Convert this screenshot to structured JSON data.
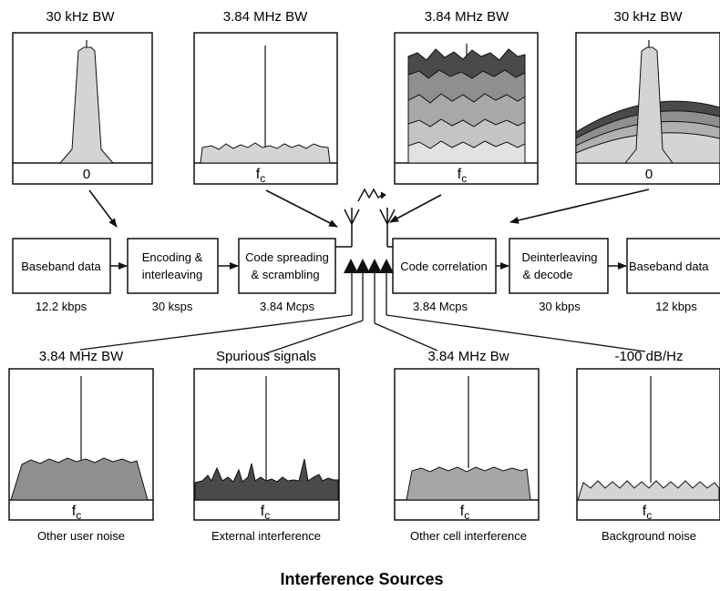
{
  "top_spectra": [
    {
      "title": "30 kHz BW",
      "freq_label": "0",
      "style": "narrow"
    },
    {
      "title": "3.84 MHz BW",
      "freq_label": "f",
      "freq_sub": "c",
      "style": "flat"
    },
    {
      "title": "3.84 MHz BW",
      "freq_label": "f",
      "freq_sub": "c",
      "style": "stacked"
    },
    {
      "title": "30 kHz BW",
      "freq_label": "0",
      "style": "narrow-on-domes"
    }
  ],
  "chain": [
    {
      "lines": [
        "Baseband data"
      ],
      "rate": "12.2 kbps"
    },
    {
      "lines": [
        "Encoding &",
        "interleaving"
      ],
      "rate": "30 ksps"
    },
    {
      "lines": [
        "Code spreading",
        "& scrambling"
      ],
      "rate": "3.84 Mcps"
    },
    {
      "lines": [
        "Code correlation"
      ],
      "rate": "3.84 Mcps"
    },
    {
      "lines": [
        "Deinterleaving",
        "& decode"
      ],
      "rate": "30 kbps"
    },
    {
      "lines": [
        "Baseband data"
      ],
      "rate": "12 kbps"
    }
  ],
  "bottom_spectra": [
    {
      "title": "3.84 MHz BW",
      "freq_label": "f",
      "freq_sub": "c",
      "caption": "Other user noise",
      "style": "flat-mid"
    },
    {
      "title": "Spurious signals",
      "freq_label": "f",
      "freq_sub": "c",
      "caption": "External interference",
      "style": "spiky"
    },
    {
      "title": "3.84 MHz Bw",
      "freq_label": "f",
      "freq_sub": "c",
      "caption": "Other cell interference",
      "style": "flat-narrow"
    },
    {
      "title": "-100 dB/Hz",
      "freq_label": "f",
      "freq_sub": "c",
      "caption": "Background noise",
      "style": "low"
    }
  ],
  "footer_title": "Interference Sources",
  "colors": {
    "light_fill": "#d4d4d4",
    "mid_fill": "#8f8f8f",
    "dark_fill": "#4a4a4a",
    "stroke": "#111111"
  }
}
